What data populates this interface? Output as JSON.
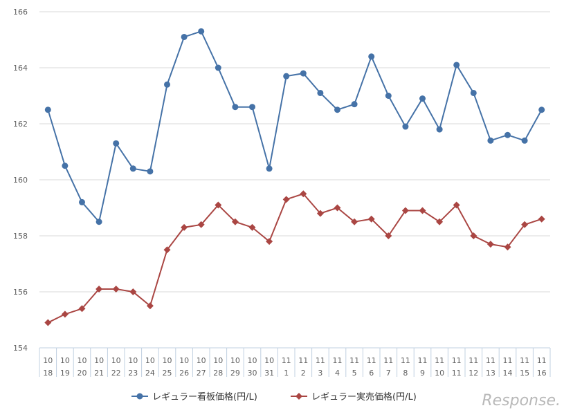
{
  "chart_data": {
    "type": "line",
    "title": "",
    "xlabel": "",
    "ylabel": "",
    "ylim": [
      154,
      166
    ],
    "yticks": [
      154,
      156,
      158,
      160,
      162,
      164,
      166
    ],
    "grid": true,
    "legend_position": "bottom",
    "categories": [
      {
        "month": "10",
        "day": "18"
      },
      {
        "month": "10",
        "day": "19"
      },
      {
        "month": "10",
        "day": "20"
      },
      {
        "month": "10",
        "day": "21"
      },
      {
        "month": "10",
        "day": "22"
      },
      {
        "month": "10",
        "day": "23"
      },
      {
        "month": "10",
        "day": "24"
      },
      {
        "month": "10",
        "day": "25"
      },
      {
        "month": "10",
        "day": "26"
      },
      {
        "month": "10",
        "day": "27"
      },
      {
        "month": "10",
        "day": "28"
      },
      {
        "month": "10",
        "day": "29"
      },
      {
        "month": "10",
        "day": "30"
      },
      {
        "month": "10",
        "day": "31"
      },
      {
        "month": "11",
        "day": "1"
      },
      {
        "month": "11",
        "day": "2"
      },
      {
        "month": "11",
        "day": "3"
      },
      {
        "month": "11",
        "day": "4"
      },
      {
        "month": "11",
        "day": "5"
      },
      {
        "month": "11",
        "day": "6"
      },
      {
        "month": "11",
        "day": "7"
      },
      {
        "month": "11",
        "day": "8"
      },
      {
        "month": "11",
        "day": "9"
      },
      {
        "month": "11",
        "day": "10"
      },
      {
        "month": "11",
        "day": "11"
      },
      {
        "month": "11",
        "day": "12"
      },
      {
        "month": "11",
        "day": "13"
      },
      {
        "month": "11",
        "day": "14"
      },
      {
        "month": "11",
        "day": "15"
      },
      {
        "month": "11",
        "day": "16"
      }
    ],
    "series": [
      {
        "name": "レギュラー看板価格(円/L)",
        "color": "#4572a7",
        "marker": "circle",
        "values": [
          162.5,
          160.5,
          159.2,
          158.5,
          161.3,
          160.4,
          160.3,
          163.4,
          165.1,
          165.3,
          164.0,
          162.6,
          162.6,
          160.4,
          163.7,
          163.8,
          163.1,
          162.5,
          162.7,
          164.4,
          163.0,
          161.9,
          162.9,
          161.8,
          164.1,
          163.1,
          161.4,
          161.6,
          161.4,
          162.5
        ]
      },
      {
        "name": "レギュラー実売価格(円/L)",
        "color": "#aa4643",
        "marker": "diamond",
        "values": [
          154.9,
          155.2,
          155.4,
          156.1,
          156.1,
          156.0,
          155.5,
          157.5,
          158.3,
          158.4,
          159.1,
          158.5,
          158.3,
          157.8,
          159.3,
          159.5,
          158.8,
          159.0,
          158.5,
          158.6,
          158.0,
          158.9,
          158.9,
          158.5,
          159.1,
          158.0,
          157.7,
          157.6,
          158.4,
          158.6
        ]
      }
    ]
  },
  "watermark": "Response."
}
